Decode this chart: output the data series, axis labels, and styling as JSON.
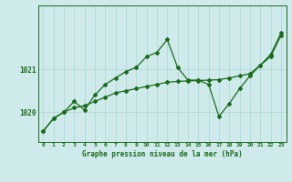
{
  "title": "Graphe pression niveau de la mer (hPa)",
  "background_color": "#ceeaea",
  "grid_color": "#aed4d4",
  "line_color": "#1a6b1a",
  "xlim": [
    -0.5,
    23.5
  ],
  "ylim": [
    1019.3,
    1022.5
  ],
  "yticks": [
    1020,
    1021
  ],
  "xticks": [
    0,
    1,
    2,
    3,
    4,
    5,
    6,
    7,
    8,
    9,
    10,
    11,
    12,
    13,
    14,
    15,
    16,
    17,
    18,
    19,
    20,
    21,
    22,
    23
  ],
  "smooth_series": [
    1019.55,
    1019.85,
    1020.0,
    1020.1,
    1020.15,
    1020.25,
    1020.35,
    1020.45,
    1020.5,
    1020.55,
    1020.6,
    1020.65,
    1020.7,
    1020.72,
    1020.73,
    1020.74,
    1020.75,
    1020.76,
    1020.8,
    1020.85,
    1020.9,
    1021.1,
    1021.3,
    1021.8
  ],
  "jagged_series": [
    1019.55,
    1019.85,
    1020.0,
    1020.25,
    1020.05,
    1020.4,
    1020.65,
    1020.8,
    1020.95,
    1021.05,
    1021.3,
    1021.4,
    1021.7,
    1021.05,
    1020.75,
    1020.75,
    1020.65,
    1019.9,
    1020.2,
    1020.55,
    1020.85,
    1021.1,
    1021.35,
    1021.85
  ]
}
